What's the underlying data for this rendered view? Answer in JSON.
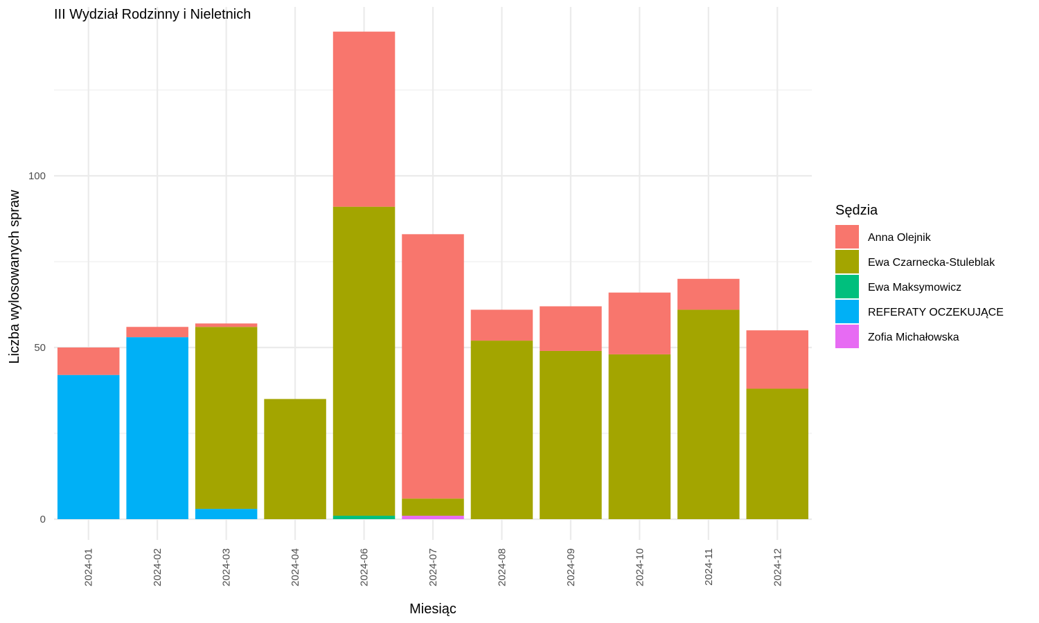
{
  "chart_data": {
    "type": "bar",
    "stacked": true,
    "title": "III Wydział Rodzinny i Nieletnich",
    "xlabel": "Miesiąc",
    "ylabel": "Liczba wylosowanych spraw",
    "categories": [
      "2024-01",
      "2024-02",
      "2024-03",
      "2024-04",
      "2024-06",
      "2024-07",
      "2024-08",
      "2024-09",
      "2024-10",
      "2024-11",
      "2024-12"
    ],
    "ylim": [
      0,
      142
    ],
    "yticks": [
      0,
      50,
      100
    ],
    "ytick_labels": [
      "0",
      "50",
      "100"
    ],
    "grid": true,
    "legend": {
      "title": "Sędzia",
      "position": "right"
    },
    "series": [
      {
        "name": "Anna Olejnik",
        "color": "#F8766D",
        "values": [
          8,
          3,
          1,
          0,
          51,
          77,
          9,
          13,
          18,
          9,
          17
        ]
      },
      {
        "name": "Ewa Czarnecka-Stuleblak",
        "color": "#A3A500",
        "values": [
          0,
          0,
          53,
          35,
          90,
          5,
          52,
          49,
          48,
          61,
          38
        ]
      },
      {
        "name": "Ewa Maksymowicz",
        "color": "#00BF7D",
        "values": [
          0,
          0,
          0,
          0,
          1,
          0,
          0,
          0,
          0,
          0,
          0
        ]
      },
      {
        "name": "REFERATY OCZEKUJĄCE",
        "color": "#00B0F6",
        "values": [
          42,
          53,
          3,
          0,
          0,
          0,
          0,
          0,
          0,
          0,
          0
        ]
      },
      {
        "name": "Zofia Michałowska",
        "color": "#E76BF3",
        "values": [
          0,
          0,
          0,
          0,
          0,
          1,
          0,
          0,
          0,
          0,
          0
        ]
      }
    ]
  }
}
